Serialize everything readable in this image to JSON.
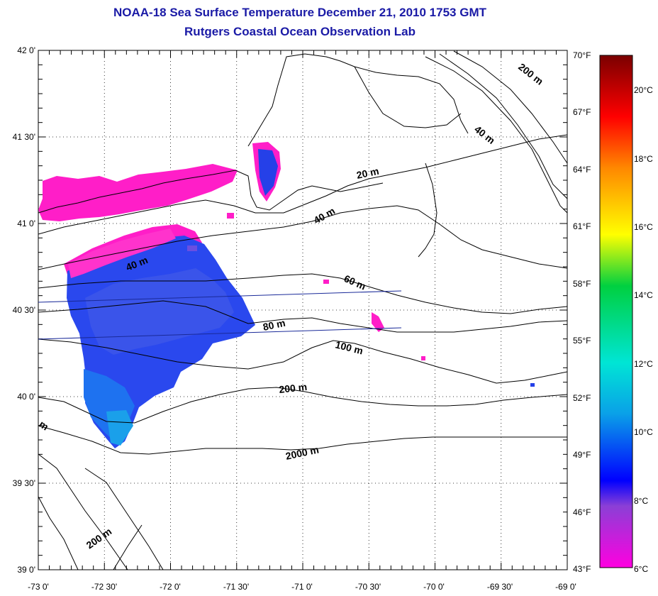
{
  "title": {
    "line1": "NOAA-18 Sea Surface Temperature December 21, 2010 1753 GMT",
    "line2": "Rutgers Coastal Ocean Observation Lab"
  },
  "axes": {
    "lat_labels": [
      "42 0'",
      "41 30'",
      "41 0'",
      "40 30'",
      "40 0'",
      "39 30'",
      "39 0'"
    ],
    "lon_labels": [
      "-73 0'",
      "-72 30'",
      "-72 0'",
      "-71 30'",
      "-71 0'",
      "-70 30'",
      "-70 0'",
      "-69 30'",
      "-69 0'"
    ]
  },
  "contours": [
    "200 m",
    "40 m",
    "20 m",
    "40 m",
    "40 m",
    "60 m",
    "80 m",
    "100 m",
    "200 m",
    "2000 m",
    "200 m",
    "m"
  ],
  "colorbar": {
    "fahrenheit": [
      "70°F",
      "67°F",
      "64°F",
      "61°F",
      "58°F",
      "55°F",
      "52°F",
      "49°F",
      "46°F",
      "43°F"
    ],
    "celsius": [
      "20°C",
      "18°C",
      "16°C",
      "14°C",
      "12°C",
      "10°C",
      "8°C",
      "6°C"
    ],
    "colors": [
      "#ff00e0",
      "#8b3fd6",
      "#0000ff",
      "#0aa0e8",
      "#00e5d5",
      "#00d040",
      "#ffff00",
      "#ff8800",
      "#ff0000",
      "#7a0000"
    ]
  }
}
